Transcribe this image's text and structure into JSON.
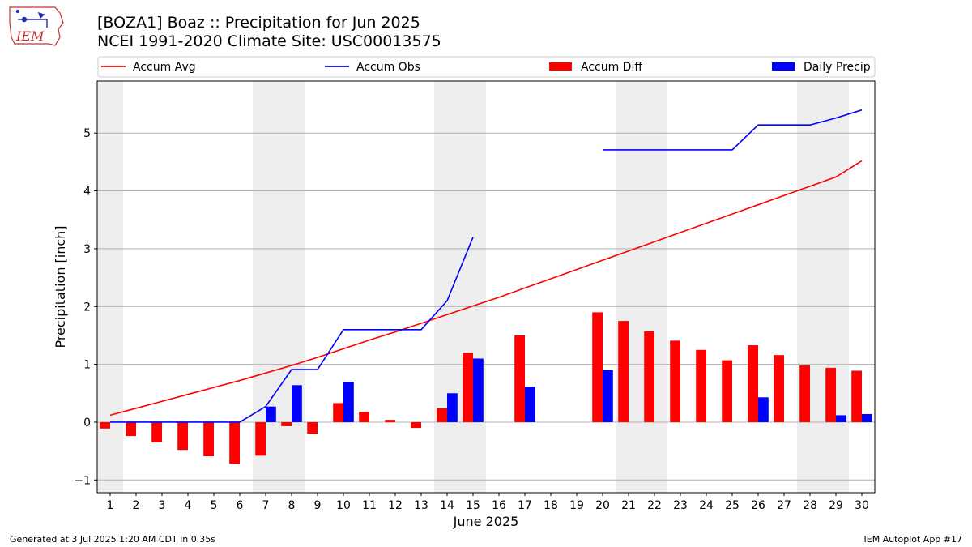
{
  "header": {
    "title_line1": "[BOZA1] Boaz :: Precipitation for Jun 2025",
    "title_line2": "NCEI 1991-2020 Climate Site: USC00013575"
  },
  "logo": {
    "text": "IEM",
    "icon": "iem-iowa-logo"
  },
  "footer": {
    "left": "Generated at 3 Jul 2025 1:20 AM CDT in 0.35s",
    "right": "IEM Autoplot App #17"
  },
  "colors": {
    "avg": "#ff0000",
    "obs": "#0000ff",
    "diff": "#ff0000",
    "daily": "#0000ff",
    "weekend": "#eeeeee",
    "grid": "#b0b0b0"
  },
  "chart_data": {
    "type": "bar",
    "xlabel": "June 2025",
    "ylabel": "Precipitation [inch]",
    "xlim": [
      0.5,
      30.5
    ],
    "ylim": [
      -1.22,
      5.9
    ],
    "yticks": [
      -1,
      0,
      1,
      2,
      3,
      4,
      5
    ],
    "grid": true,
    "legend_placement": "top, above plot",
    "weekend_days": [
      1,
      7,
      8,
      14,
      15,
      21,
      22,
      28,
      29
    ],
    "legend": [
      "Accum Avg",
      "Accum Obs",
      "Accum Diff",
      "Daily Precip"
    ],
    "days": [
      1,
      2,
      3,
      4,
      5,
      6,
      7,
      8,
      9,
      10,
      11,
      12,
      13,
      14,
      15,
      16,
      17,
      18,
      19,
      20,
      21,
      22,
      23,
      24,
      25,
      26,
      27,
      28,
      29,
      30
    ],
    "series": [
      {
        "name": "Accum Avg",
        "kind": "line",
        "values": [
          0.12,
          0.24,
          0.36,
          0.48,
          0.6,
          0.72,
          0.85,
          0.98,
          1.12,
          1.27,
          1.42,
          1.56,
          1.71,
          1.86,
          2.01,
          2.16,
          2.32,
          2.48,
          2.64,
          2.8,
          2.96,
          3.12,
          3.28,
          3.44,
          3.6,
          3.76,
          3.92,
          4.08,
          4.24,
          4.52
        ]
      },
      {
        "name": "Accum Obs",
        "kind": "line",
        "values": [
          0,
          0,
          0,
          0,
          0,
          0,
          0.27,
          0.91,
          0.91,
          1.6,
          1.6,
          1.6,
          1.6,
          2.1,
          3.2,
          null,
          null,
          null,
          null,
          4.71,
          4.71,
          4.71,
          4.71,
          4.71,
          4.71,
          5.14,
          5.14,
          5.14,
          5.26,
          5.4
        ]
      },
      {
        "name": "Accum Diff",
        "kind": "bar",
        "values": [
          -0.11,
          -0.24,
          -0.35,
          -0.48,
          -0.59,
          -0.72,
          -0.58,
          -0.07,
          -0.2,
          0.33,
          0.18,
          0.04,
          -0.1,
          0.24,
          1.2,
          null,
          1.5,
          null,
          null,
          1.9,
          1.75,
          1.57,
          1.41,
          1.25,
          1.07,
          1.33,
          1.16,
          0.98,
          0.94,
          0.89
        ]
      },
      {
        "name": "Daily Precip",
        "kind": "bar",
        "values": [
          0,
          0,
          0,
          0,
          0,
          0,
          0.27,
          0.64,
          0,
          0.7,
          0,
          0,
          0,
          0.5,
          1.1,
          null,
          0.61,
          null,
          null,
          0.9,
          0,
          0,
          0,
          0,
          0,
          0.43,
          0,
          0,
          0.12,
          0.14
        ]
      }
    ]
  }
}
